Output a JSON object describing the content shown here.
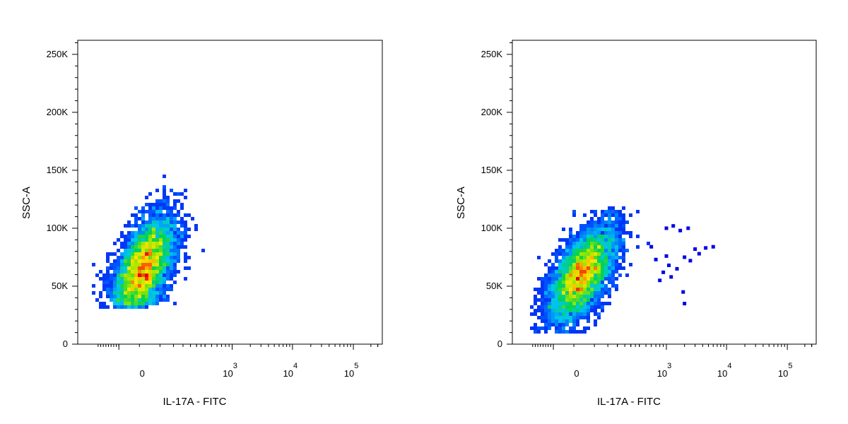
{
  "chart_data": [
    {
      "type": "scatter",
      "title": "",
      "xlabel": "IL-17A - FITC",
      "ylabel": "SSC-A",
      "x_scale": "biexponential",
      "y_scale": "linear",
      "ylim": [
        0,
        262144
      ],
      "y_ticks": [
        {
          "value": 0,
          "label": "0"
        },
        {
          "value": 50000,
          "label": "50K"
        },
        {
          "value": 100000,
          "label": "100K"
        },
        {
          "value": 150000,
          "label": "150K"
        },
        {
          "value": 200000,
          "label": "200K"
        },
        {
          "value": 250000,
          "label": "250K"
        }
      ],
      "x_ticks": [
        {
          "value": 0,
          "label": "0",
          "exp": ""
        },
        {
          "value": 1000,
          "label": "10",
          "exp": "3"
        },
        {
          "value": 10000,
          "label": "10",
          "exp": "4"
        },
        {
          "value": 100000,
          "label": "10",
          "exp": "5"
        }
      ],
      "color_scale": "density (blue-green-yellow-red)",
      "population": {
        "center_x": 60,
        "center_y": 65000,
        "y_min": 32000,
        "y_max": 148000,
        "x_range": [
          -300,
          700
        ]
      },
      "outliers": []
    },
    {
      "type": "scatter",
      "title": "",
      "xlabel": "IL-17A - FITC",
      "ylabel": "SSC-A",
      "x_scale": "biexponential",
      "y_scale": "linear",
      "ylim": [
        0,
        262144
      ],
      "y_ticks": [
        {
          "value": 0,
          "label": "0"
        },
        {
          "value": 50000,
          "label": "50K"
        },
        {
          "value": 100000,
          "label": "100K"
        },
        {
          "value": 150000,
          "label": "150K"
        },
        {
          "value": 200000,
          "label": "200K"
        },
        {
          "value": 250000,
          "label": "250K"
        }
      ],
      "x_ticks": [
        {
          "value": 0,
          "label": "0",
          "exp": ""
        },
        {
          "value": 1000,
          "label": "10",
          "exp": "3"
        },
        {
          "value": 10000,
          "label": "10",
          "exp": "4"
        },
        {
          "value": 100000,
          "label": "10",
          "exp": "5"
        }
      ],
      "color_scale": "density (blue-green-yellow-red)",
      "population": {
        "center_x": 70,
        "center_y": 60000,
        "y_min": 10000,
        "y_max": 118000,
        "x_range": [
          -300,
          500
        ]
      },
      "outliers": [
        {
          "x": 1000,
          "y": 100000
        },
        {
          "x": 1300,
          "y": 102000
        },
        {
          "x": 1700,
          "y": 98000
        },
        {
          "x": 2300,
          "y": 100000
        },
        {
          "x": 3000,
          "y": 82000
        },
        {
          "x": 4500,
          "y": 83000
        },
        {
          "x": 6000,
          "y": 84000
        },
        {
          "x": 2000,
          "y": 75000
        },
        {
          "x": 2500,
          "y": 72000
        },
        {
          "x": 3500,
          "y": 78000
        },
        {
          "x": 1100,
          "y": 68000
        },
        {
          "x": 1500,
          "y": 65000
        },
        {
          "x": 900,
          "y": 62000
        },
        {
          "x": 1900,
          "y": 45000
        },
        {
          "x": 2000,
          "y": 35000
        },
        {
          "x": 1200,
          "y": 58000
        },
        {
          "x": 800,
          "y": 55000
        },
        {
          "x": 700,
          "y": 73000
        },
        {
          "x": 600,
          "y": 84000
        },
        {
          "x": 1000,
          "y": 76000
        }
      ]
    }
  ]
}
